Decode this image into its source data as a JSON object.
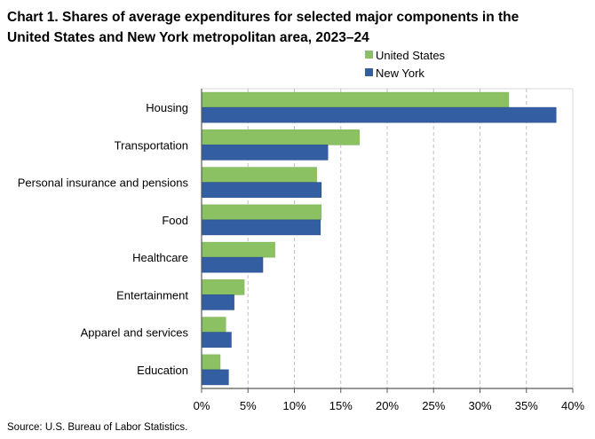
{
  "chart_data": {
    "type": "bar",
    "orientation": "horizontal",
    "title_lines": [
      "Chart 1. Shares of average expenditures for selected major components in the",
      "United States and New York metropolitan area, 2023–24"
    ],
    "categories": [
      "Housing",
      "Transportation",
      "Personal insurance and pensions",
      "Food",
      "Healthcare",
      "Entertainment",
      "Apparel and services",
      "Education"
    ],
    "series": [
      {
        "name": "United States",
        "color": "#8bc163",
        "values": [
          33.1,
          17.0,
          12.4,
          12.9,
          7.9,
          4.6,
          2.6,
          2.0
        ]
      },
      {
        "name": "New York",
        "color": "#345ea2",
        "values": [
          38.2,
          13.6,
          12.9,
          12.8,
          6.6,
          3.5,
          3.2,
          2.9
        ]
      }
    ],
    "xlim": [
      0,
      40
    ],
    "x_ticks": [
      "0%",
      "5%",
      "10%",
      "15%",
      "20%",
      "25%",
      "30%",
      "35%",
      "40%"
    ],
    "x_tick_values": [
      0,
      5,
      10,
      15,
      20,
      25,
      30,
      35,
      40
    ],
    "grid": "vertical dashed",
    "legend_placement": "top",
    "source": "Source: U.S. Bureau of Labor Statistics."
  }
}
